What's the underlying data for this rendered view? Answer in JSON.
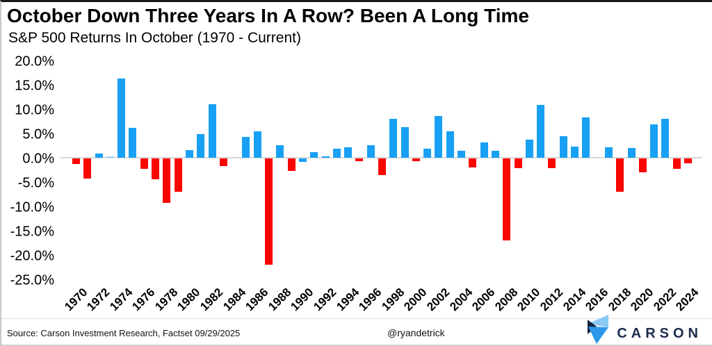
{
  "header": {
    "title": "October Down Three Years In A Row?  Been A Long Time",
    "subtitle": "S&P 500 Returns In October (1970 - Current)"
  },
  "footer": {
    "source": "Source: Carson Investment Research, Factset 09/29/2025",
    "handle": "@ryandetrick",
    "brand": "CARSON"
  },
  "colors": {
    "positive_bar": "#18a0f4",
    "negative_bar": "#fb0500",
    "tiny_bar": "#a5d7f7",
    "zero_line": "#d9d9d9",
    "brand_navy": "#1b2b4c",
    "brand_light_blue": "#8bc9f3",
    "brand_mid_blue": "#2b97e8"
  },
  "chart_data": {
    "type": "bar",
    "title": "October Down Three Years In A Row?  Been A Long Time",
    "subtitle": "S&P 500 Returns In October (1970 - Current)",
    "xlabel": "",
    "ylabel": "",
    "ylim": [
      -25,
      20
    ],
    "grid": false,
    "legend": "none",
    "y_ticks": [
      "20.0%",
      "15.0%",
      "10.0%",
      "5.0%",
      "0.0%",
      "-5.0%",
      "-10.0%",
      "-15.0%",
      "-20.0%",
      "-25.0%"
    ],
    "x_ticks": [
      "1970",
      "1972",
      "1974",
      "1976",
      "1978",
      "1980",
      "1982",
      "1984",
      "1986",
      "1988",
      "1990",
      "1992",
      "1994",
      "1996",
      "1998",
      "2000",
      "2002",
      "2004",
      "2006",
      "2008",
      "2010",
      "2012",
      "2014",
      "2016",
      "2018",
      "2020",
      "2022",
      "2024"
    ],
    "points": [
      {
        "year": 1970,
        "value": -1.1,
        "color": "#fb0500"
      },
      {
        "year": 1971,
        "value": -4.2,
        "color": "#fb0500"
      },
      {
        "year": 1972,
        "value": 0.9,
        "color": "#18a0f4"
      },
      {
        "year": 1973,
        "value": 0.1,
        "color": "#a5d7f7"
      },
      {
        "year": 1974,
        "value": 16.3,
        "color": "#18a0f4"
      },
      {
        "year": 1975,
        "value": 6.2,
        "color": "#18a0f4"
      },
      {
        "year": 1976,
        "value": -2.2,
        "color": "#fb0500"
      },
      {
        "year": 1977,
        "value": -4.3,
        "color": "#fb0500"
      },
      {
        "year": 1978,
        "value": -9.2,
        "color": "#fb0500"
      },
      {
        "year": 1979,
        "value": -6.9,
        "color": "#fb0500"
      },
      {
        "year": 1980,
        "value": 1.6,
        "color": "#18a0f4"
      },
      {
        "year": 1981,
        "value": 4.9,
        "color": "#18a0f4"
      },
      {
        "year": 1982,
        "value": 11.0,
        "color": "#18a0f4"
      },
      {
        "year": 1983,
        "value": -1.5,
        "color": "#fb0500"
      },
      {
        "year": 1984,
        "value": 0.0,
        "color": null
      },
      {
        "year": 1985,
        "value": 4.3,
        "color": "#18a0f4"
      },
      {
        "year": 1986,
        "value": 5.5,
        "color": "#18a0f4"
      },
      {
        "year": 1987,
        "value": -21.8,
        "color": "#fb0500"
      },
      {
        "year": 1988,
        "value": 2.6,
        "color": "#18a0f4"
      },
      {
        "year": 1989,
        "value": -2.5,
        "color": "#fb0500"
      },
      {
        "year": 1990,
        "value": -0.7,
        "color": "#18a0f4"
      },
      {
        "year": 1991,
        "value": 1.2,
        "color": "#18a0f4"
      },
      {
        "year": 1992,
        "value": 0.2,
        "color": "#18a0f4"
      },
      {
        "year": 1993,
        "value": 1.9,
        "color": "#18a0f4"
      },
      {
        "year": 1994,
        "value": 2.1,
        "color": "#18a0f4"
      },
      {
        "year": 1995,
        "value": -0.5,
        "color": "#fb0500"
      },
      {
        "year": 1996,
        "value": 2.6,
        "color": "#18a0f4"
      },
      {
        "year": 1997,
        "value": -3.4,
        "color": "#fb0500"
      },
      {
        "year": 1998,
        "value": 8.0,
        "color": "#18a0f4"
      },
      {
        "year": 1999,
        "value": 6.3,
        "color": "#18a0f4"
      },
      {
        "year": 2000,
        "value": -0.5,
        "color": "#fb0500"
      },
      {
        "year": 2001,
        "value": 1.8,
        "color": "#18a0f4"
      },
      {
        "year": 2002,
        "value": 8.6,
        "color": "#18a0f4"
      },
      {
        "year": 2003,
        "value": 5.5,
        "color": "#18a0f4"
      },
      {
        "year": 2004,
        "value": 1.4,
        "color": "#18a0f4"
      },
      {
        "year": 2005,
        "value": -1.8,
        "color": "#fb0500"
      },
      {
        "year": 2006,
        "value": 3.2,
        "color": "#18a0f4"
      },
      {
        "year": 2007,
        "value": 1.5,
        "color": "#18a0f4"
      },
      {
        "year": 2008,
        "value": -16.9,
        "color": "#fb0500"
      },
      {
        "year": 2009,
        "value": -2.0,
        "color": "#fb0500"
      },
      {
        "year": 2010,
        "value": 3.7,
        "color": "#18a0f4"
      },
      {
        "year": 2011,
        "value": 10.8,
        "color": "#18a0f4"
      },
      {
        "year": 2012,
        "value": -2.0,
        "color": "#fb0500"
      },
      {
        "year": 2013,
        "value": 4.5,
        "color": "#18a0f4"
      },
      {
        "year": 2014,
        "value": 2.3,
        "color": "#18a0f4"
      },
      {
        "year": 2015,
        "value": 8.3,
        "color": "#18a0f4"
      },
      {
        "year": 2016,
        "value": 0.0,
        "color": null
      },
      {
        "year": 2017,
        "value": 2.2,
        "color": "#18a0f4"
      },
      {
        "year": 2018,
        "value": -6.9,
        "color": "#fb0500"
      },
      {
        "year": 2019,
        "value": 2.0,
        "color": "#18a0f4"
      },
      {
        "year": 2020,
        "value": -2.8,
        "color": "#fb0500"
      },
      {
        "year": 2021,
        "value": 6.9,
        "color": "#18a0f4"
      },
      {
        "year": 2022,
        "value": 8.0,
        "color": "#18a0f4"
      },
      {
        "year": 2023,
        "value": -2.2,
        "color": "#fb0500"
      },
      {
        "year": 2024,
        "value": -1.0,
        "color": "#fb0500"
      }
    ]
  }
}
